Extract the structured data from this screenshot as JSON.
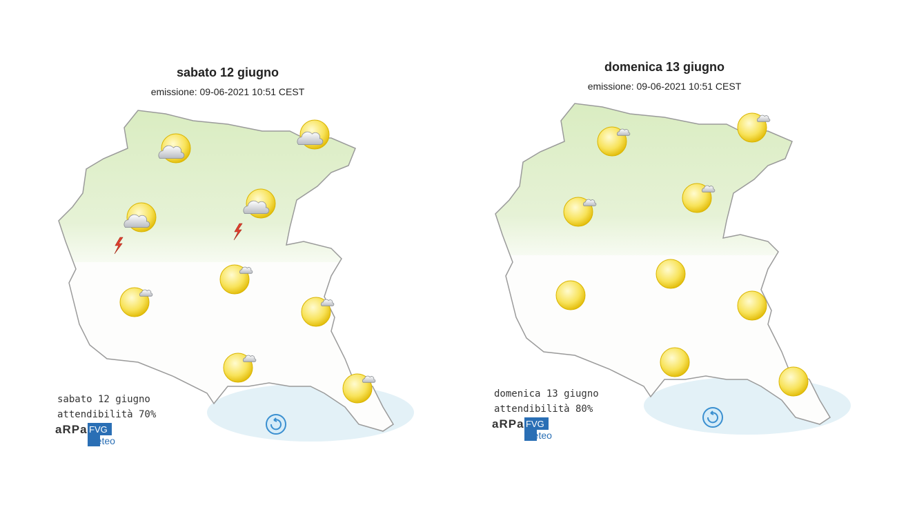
{
  "panels": [
    {
      "title": "sabato 12 giugno",
      "emission": "emissione: 09-06-2021 10:51 CEST",
      "caption": "sabato 12 giugno",
      "reliability": "attendibilità 70%",
      "logo": {
        "arpa": "aRPa",
        "fvg": "FVG",
        "meteo": "meteo"
      }
    },
    {
      "title": "domenica 13 giugno",
      "emission": "emissione: 09-06-2021 10:51 CEST",
      "caption": "domenica 13 giugno",
      "reliability": "attendibilità 80%",
      "logo": {
        "arpa": "aRPa",
        "fvg": "FVG",
        "meteo": "meteo"
      }
    }
  ]
}
